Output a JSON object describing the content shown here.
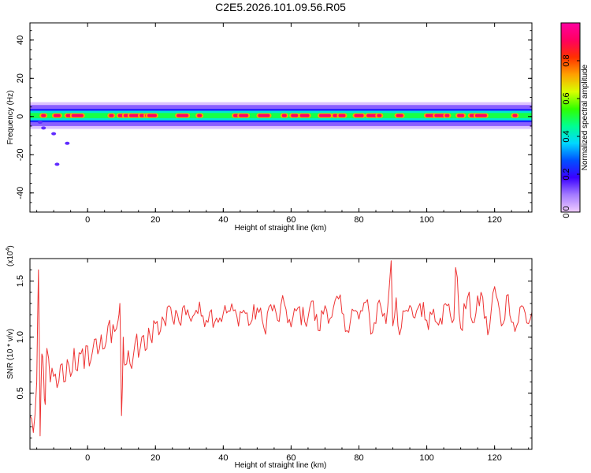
{
  "figure": {
    "title": "C2E5.2026.101.09.56.R05"
  },
  "chart_data": [
    {
      "type": "heatmap",
      "title": "C2E5.2026.101.09.56.R05",
      "xlabel": "Height of straight line (km)",
      "ylabel": "Frequency (Hz)",
      "xlim": [
        -17,
        131
      ],
      "ylim": [
        -50,
        49
      ],
      "xticks": [
        0,
        20,
        40,
        60,
        80,
        100,
        120
      ],
      "yticks": [
        -40,
        -20,
        0,
        20,
        40
      ],
      "grid": false,
      "band": {
        "frequency_center_hz": 0.5,
        "core_halfwidth_hz": 2.5,
        "halo_halfwidth_hz": 5.5,
        "peak_amplitude_positions_km": [
          -13,
          -9,
          -5,
          -3,
          7,
          10,
          12,
          14,
          16,
          18,
          19,
          28,
          33,
          44,
          46,
          52,
          58,
          61,
          64,
          70,
          73,
          75,
          80,
          84,
          86,
          92,
          101,
          104,
          106,
          110,
          114,
          116,
          126
        ]
      },
      "scattered_low_amplitude": [
        {
          "x": -14,
          "y": -3
        },
        {
          "x": -13,
          "y": -6
        },
        {
          "x": -10,
          "y": -9
        },
        {
          "x": -6,
          "y": -14
        },
        {
          "x": -9,
          "y": -25
        }
      ],
      "colorbar": {
        "label": "Normalized spectral amplitude",
        "range": [
          0.0,
          1.0
        ],
        "ticks": [
          "0.0",
          "0.2",
          "0.4",
          "0.6",
          "0.8"
        ],
        "colormap": [
          "#f0ccff",
          "#a47cff",
          "#3a00ff",
          "#0050ff",
          "#00d8ff",
          "#00ff90",
          "#30ff00",
          "#d8ff00",
          "#ffa000",
          "#ff3000",
          "#ff0060",
          "#ff00a0"
        ]
      }
    },
    {
      "type": "line",
      "xlabel": "Height of straight line (km)",
      "ylabel": "SNR (10 * v/v)",
      "y_multiplier_label": "(x10",
      "y_multiplier_exponent": "4",
      "xlim": [
        -17,
        131
      ],
      "ylim": [
        0,
        17000
      ],
      "xticks": [
        0,
        20,
        40,
        60,
        80,
        100,
        120
      ],
      "yticks": [
        5000,
        10000,
        15000
      ],
      "ytick_labels": [
        "0.5",
        "1.0",
        "1.5"
      ],
      "grid": false,
      "series": [
        {
          "color": "#ee3333",
          "x": [
            -17,
            -16,
            -15,
            -14.5,
            -14,
            -13.5,
            -13,
            -12.5,
            -12,
            -11,
            -10,
            -9,
            -8,
            -7,
            -6,
            -5,
            -4,
            -3,
            -2,
            -1,
            0,
            1,
            2,
            3,
            4,
            5,
            6,
            7,
            8,
            9,
            9.5,
            10,
            10.5,
            11,
            12,
            13,
            14,
            15,
            16,
            17,
            18,
            19,
            20,
            21,
            22,
            23,
            24,
            25,
            26,
            27,
            28,
            30,
            32,
            34,
            36,
            38,
            40,
            42,
            44,
            46,
            48,
            50,
            52,
            54,
            56,
            58,
            60,
            62,
            64,
            66,
            68,
            70,
            72,
            74,
            76,
            78,
            80,
            82,
            84,
            86,
            88,
            89.5,
            90,
            91,
            92,
            94,
            96,
            98,
            100,
            102,
            104,
            106,
            108,
            108.5,
            110,
            112,
            114,
            116,
            118,
            120,
            122,
            124,
            126,
            128,
            130,
            131
          ],
          "values": [
            3000,
            1500,
            6000,
            16000,
            1200,
            8500,
            7000,
            4000,
            9000,
            6000,
            6500,
            5500,
            7500,
            6000,
            8000,
            6500,
            9000,
            7000,
            8500,
            7200,
            9200,
            8000,
            9800,
            8500,
            10200,
            9000,
            11000,
            9500,
            10500,
            11500,
            13000,
            3000,
            10000,
            7500,
            8800,
            7200,
            9500,
            8200,
            10000,
            8800,
            10800,
            9500,
            11200,
            10200,
            11800,
            11000,
            12800,
            11600,
            12400,
            11300,
            12600,
            11800,
            12400,
            11900,
            12200,
            11700,
            12100,
            12300,
            11900,
            12400,
            11200,
            12600,
            10800,
            12900,
            11500,
            13000,
            10900,
            12600,
            11400,
            13200,
            10600,
            12800,
            11800,
            13400,
            10500,
            12500,
            11600,
            13100,
            10400,
            13300,
            11200,
            16800,
            11000,
            13500,
            10200,
            12400,
            11800,
            13000,
            11500,
            12500,
            11700,
            12800,
            11600,
            16200,
            10800,
            13500,
            11300,
            14000,
            10200,
            14500,
            11000,
            13800,
            10500,
            12800,
            11200,
            12200
          ]
        }
      ]
    }
  ]
}
